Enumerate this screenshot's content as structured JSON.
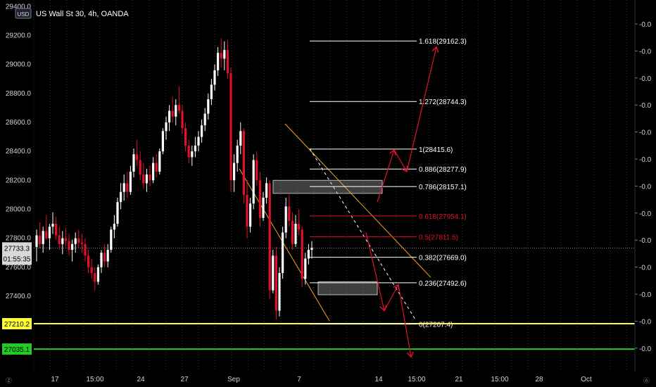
{
  "header": {
    "currency_badge": "USD",
    "symbol_title": "US Wall St 30, 4h, OANDA"
  },
  "colors": {
    "background": "#000000",
    "candle_up": "#ffffff",
    "candle_down": "#e0122a",
    "fib_white": "#ffffff",
    "fib_red": "#e0122a",
    "channel": "#f5a623",
    "yellow_line": "#ffff33",
    "green_line": "#22cc22",
    "arrow": "#e0122a",
    "box": "#9aa0a6"
  },
  "chart_data": {
    "type": "candlestick",
    "symbol": "US Wall St 30, 4h, OANDA",
    "y_axis_labels": [
      "29400.0",
      "29200.0",
      "29000.0",
      "28800.0",
      "28600.0",
      "28400.0",
      "28200.0",
      "28000.0",
      "27800.0",
      "27600.0",
      "27400.0"
    ],
    "y_axis_values": [
      29400,
      29200,
      29000,
      28800,
      28600,
      28400,
      28200,
      28000,
      27800,
      27600,
      27400
    ],
    "ylim": [
      26880,
      29445
    ],
    "x_tick_labels": [
      "17",
      "15:00",
      "24",
      "27",
      "Sep",
      "7",
      "14",
      "15:00",
      "21",
      "15:00",
      "28",
      "Oct"
    ],
    "right_axis_labels": [
      "-0.0",
      "-0.0",
      "-0.0",
      "-0.0",
      "-0.0",
      "-0.0",
      "-0.0",
      "-0.0",
      "-0.0",
      "-0.0",
      "-0.0",
      "-0.0",
      "-0.0",
      "-0.0"
    ],
    "current_price": {
      "value": 27733.3,
      "label": "27733.3",
      "countdown": "01:55:35"
    },
    "levels": [
      {
        "label": "27210.2",
        "value": 27210.2,
        "color": "#ffff33"
      },
      {
        "label": "27035.1",
        "value": 27035.1,
        "color": "#22cc22"
      }
    ],
    "fibonacci": [
      {
        "ratio": "1.618",
        "value": 29162.3,
        "label": "1.618(29162.3)",
        "color": "#ffffff"
      },
      {
        "ratio": "1.272",
        "value": 28744.3,
        "label": "1.272(28744.3)",
        "color": "#ffffff"
      },
      {
        "ratio": "1",
        "value": 28415.6,
        "label": "1(28415.6)",
        "color": "#ffffff"
      },
      {
        "ratio": "0.886",
        "value": 28277.9,
        "label": "0.886(28277.9)",
        "color": "#ffffff"
      },
      {
        "ratio": "0.786",
        "value": 28157.1,
        "label": "0.786(28157.1)",
        "color": "#ffffff"
      },
      {
        "ratio": "0.618",
        "value": 27954.1,
        "label": "0.618(27954.1)",
        "color": "#e0122a"
      },
      {
        "ratio": "0.5",
        "value": 27811.5,
        "label": "0.5(27811.5)",
        "color": "#e0122a"
      },
      {
        "ratio": "0.382",
        "value": 27669.0,
        "label": "0.382(27669.0)",
        "color": "#ffffff"
      },
      {
        "ratio": "0.236",
        "value": 27492.6,
        "label": "0.236(27492.6)",
        "color": "#ffffff"
      },
      {
        "ratio": "0",
        "value": 27207.4,
        "label": "0(27207.4)",
        "color": "#ffffff"
      }
    ],
    "candles": [
      [
        27740,
        27860,
        27640,
        27820
      ],
      [
        27820,
        27910,
        27730,
        27760
      ],
      [
        27760,
        27880,
        27700,
        27850
      ],
      [
        27850,
        27960,
        27790,
        27800
      ],
      [
        27800,
        27900,
        27720,
        27880
      ],
      [
        27880,
        27980,
        27830,
        27900
      ],
      [
        27900,
        27950,
        27790,
        27820
      ],
      [
        27820,
        27880,
        27720,
        27760
      ],
      [
        27760,
        27850,
        27690,
        27800
      ],
      [
        27800,
        27870,
        27740,
        27780
      ],
      [
        27780,
        27830,
        27680,
        27720
      ],
      [
        27720,
        27790,
        27640,
        27760
      ],
      [
        27760,
        27840,
        27700,
        27800
      ],
      [
        27800,
        27860,
        27730,
        27770
      ],
      [
        27770,
        27830,
        27700,
        27760
      ],
      [
        27760,
        27800,
        27640,
        27680
      ],
      [
        27680,
        27720,
        27560,
        27600
      ],
      [
        27600,
        27660,
        27520,
        27560
      ],
      [
        27560,
        27600,
        27440,
        27500
      ],
      [
        27500,
        27620,
        27480,
        27600
      ],
      [
        27600,
        27720,
        27560,
        27700
      ],
      [
        27700,
        27760,
        27600,
        27640
      ],
      [
        27640,
        27760,
        27600,
        27720
      ],
      [
        27720,
        27880,
        27700,
        27860
      ],
      [
        27860,
        27960,
        27800,
        27900
      ],
      [
        27900,
        28080,
        27880,
        28050
      ],
      [
        28050,
        28180,
        28000,
        28120
      ],
      [
        28120,
        28240,
        28060,
        28180
      ],
      [
        28180,
        28260,
        28080,
        28120
      ],
      [
        28120,
        28300,
        28100,
        28260
      ],
      [
        28260,
        28420,
        28220,
        28380
      ],
      [
        28380,
        28480,
        28300,
        28340
      ],
      [
        28340,
        28400,
        28200,
        28240
      ],
      [
        28240,
        28320,
        28140,
        28180
      ],
      [
        28180,
        28280,
        28120,
        28240
      ],
      [
        28240,
        28300,
        28160,
        28200
      ],
      [
        28200,
        28360,
        28180,
        28320
      ],
      [
        28320,
        28380,
        28220,
        28260
      ],
      [
        28260,
        28420,
        28240,
        28400
      ],
      [
        28400,
        28560,
        28380,
        28540
      ],
      [
        28540,
        28640,
        28480,
        28600
      ],
      [
        28600,
        28720,
        28540,
        28680
      ],
      [
        28680,
        28780,
        28600,
        28640
      ],
      [
        28640,
        28760,
        28580,
        28720
      ],
      [
        28720,
        28850,
        28660,
        28680
      ],
      [
        28680,
        28720,
        28520,
        28560
      ],
      [
        28560,
        28600,
        28400,
        28440
      ],
      [
        28440,
        28480,
        28320,
        28360
      ],
      [
        28360,
        28440,
        28300,
        28400
      ],
      [
        28400,
        28500,
        28360,
        28440
      ],
      [
        28440,
        28540,
        28400,
        28500
      ],
      [
        28500,
        28620,
        28460,
        28580
      ],
      [
        28580,
        28700,
        28540,
        28660
      ],
      [
        28660,
        28800,
        28620,
        28760
      ],
      [
        28760,
        28900,
        28720,
        28860
      ],
      [
        28860,
        29000,
        28820,
        28960
      ],
      [
        28960,
        29120,
        28920,
        29080
      ],
      [
        29080,
        29180,
        28980,
        29040
      ],
      [
        29040,
        29160,
        28960,
        29100
      ],
      [
        29100,
        29170,
        28900,
        28940
      ],
      [
        28940,
        28980,
        28120,
        28200
      ],
      [
        28200,
        28380,
        28120,
        28320
      ],
      [
        28320,
        28480,
        28260,
        28440
      ],
      [
        28440,
        28600,
        28380,
        28540
      ],
      [
        28540,
        28560,
        28040,
        28100
      ],
      [
        28100,
        28200,
        27800,
        27880
      ],
      [
        27880,
        28080,
        27840,
        28040
      ],
      [
        28040,
        28380,
        28000,
        28340
      ],
      [
        28340,
        28400,
        28160,
        28200
      ],
      [
        28200,
        28260,
        27880,
        27940
      ],
      [
        27940,
        28120,
        27920,
        28080
      ],
      [
        28080,
        28220,
        28040,
        28180
      ],
      [
        28180,
        28200,
        27380,
        27440
      ],
      [
        27440,
        27720,
        27420,
        27680
      ],
      [
        27680,
        27740,
        27240,
        27300
      ],
      [
        27300,
        27600,
        27260,
        27560
      ],
      [
        27560,
        27880,
        27520,
        27840
      ],
      [
        27840,
        28080,
        27800,
        28020
      ],
      [
        28020,
        28100,
        27880,
        27920
      ],
      [
        27920,
        27980,
        27720,
        27760
      ],
      [
        27760,
        27960,
        27740,
        27900
      ],
      [
        27900,
        28000,
        27820,
        27860
      ],
      [
        27860,
        27880,
        27460,
        27520
      ],
      [
        27520,
        27700,
        27480,
        27660
      ],
      [
        27660,
        27760,
        27620,
        27720
      ],
      [
        27720,
        27780,
        27660,
        27733
      ]
    ]
  }
}
